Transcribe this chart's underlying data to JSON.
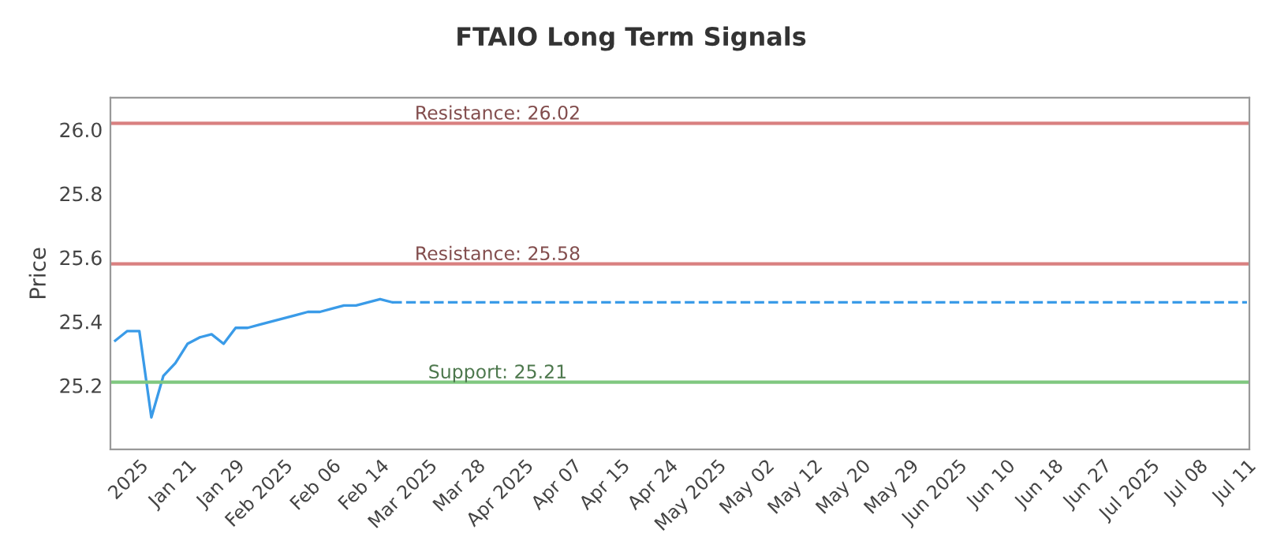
{
  "chart_data": {
    "type": "line",
    "title": "FTAIO Long Term Signals",
    "ylabel": "Price",
    "categories": [
      null,
      null,
      "2025",
      null,
      null,
      null,
      "Jan 21",
      null,
      null,
      null,
      "Jan 29",
      null,
      null,
      null,
      "Feb 2025",
      null,
      null,
      null,
      "Feb 06",
      null,
      null,
      null,
      "Feb 14",
      null,
      null,
      null,
      "Mar 2025",
      null,
      null,
      null,
      "Mar 28",
      null,
      null,
      null,
      "Apr 2025",
      null,
      null,
      null,
      "Apr 07",
      null,
      null,
      null,
      "Apr 15",
      null,
      null,
      null,
      "Apr 24",
      null,
      null,
      null,
      "May 2025",
      null,
      null,
      null,
      "May 02",
      null,
      null,
      null,
      "May 12",
      null,
      null,
      null,
      "May 20",
      null,
      null,
      null,
      "May 29",
      null,
      null,
      null,
      "Jun 2025",
      null,
      null,
      null,
      "Jun 10",
      null,
      null,
      null,
      "Jun 18",
      null,
      null,
      null,
      "Jun 27",
      null,
      null,
      null,
      "Jul 2025",
      null,
      null,
      null,
      "Jul 08",
      null,
      null,
      null,
      "Jul 11"
    ],
    "series": [
      {
        "color": "#3a9be8",
        "line_style": "solid",
        "values": [
          25.34,
          25.37,
          25.37,
          25.1,
          25.23,
          25.27,
          25.33,
          25.35,
          25.36,
          25.33,
          25.38,
          25.38,
          25.39,
          25.4,
          25.41,
          25.42,
          25.43,
          25.43,
          25.44,
          25.45,
          25.45,
          25.46,
          25.47,
          25.46,
          null,
          null,
          null,
          null,
          null,
          null,
          null,
          null,
          null,
          null,
          null,
          null,
          null,
          null,
          null,
          null,
          null,
          null,
          null,
          null,
          null,
          null,
          null,
          null,
          null,
          null,
          null,
          null,
          null,
          null,
          null,
          null,
          null,
          null,
          null,
          null,
          null,
          null,
          null,
          null,
          null,
          null,
          null,
          null,
          null,
          null,
          null,
          null,
          null,
          null,
          null,
          null,
          null,
          null,
          null,
          null,
          null,
          null,
          null,
          null,
          null,
          null,
          null,
          null,
          null,
          null,
          null,
          null,
          null,
          null,
          null
        ]
      },
      {
        "color": "#3a9be8",
        "line_style": "dashed",
        "values": [
          null,
          null,
          null,
          null,
          null,
          null,
          null,
          null,
          null,
          null,
          null,
          null,
          null,
          null,
          null,
          null,
          null,
          null,
          null,
          null,
          null,
          null,
          null,
          25.46,
          25.46,
          25.46,
          25.46,
          25.46,
          25.46,
          25.46,
          25.46,
          25.46,
          25.46,
          25.46,
          25.46,
          25.46,
          25.46,
          25.46,
          25.46,
          25.46,
          25.46,
          25.46,
          25.46,
          25.46,
          25.46,
          25.46,
          25.46,
          25.46,
          25.46,
          25.46,
          25.46,
          25.46,
          25.46,
          25.46,
          25.46,
          25.46,
          25.46,
          25.46,
          25.46,
          25.46,
          25.46,
          25.46,
          25.46,
          25.46,
          25.46,
          25.46,
          25.46,
          25.46,
          25.46,
          25.46,
          25.46,
          25.46,
          25.46,
          25.46,
          25.46,
          25.46,
          25.46,
          25.46,
          25.46,
          25.46,
          25.46,
          25.46,
          25.46,
          25.46,
          25.46,
          25.46,
          25.46,
          25.46,
          25.46,
          25.46,
          25.46,
          25.46,
          25.46,
          25.46,
          25.46
        ]
      }
    ],
    "ylim": [
      25.0,
      26.1
    ],
    "yticks": [
      {
        "value": 25.2,
        "label": "25.2"
      },
      {
        "value": 25.4,
        "label": "25.4"
      },
      {
        "value": 25.6,
        "label": "25.6"
      },
      {
        "value": 25.8,
        "label": "25.8"
      },
      {
        "value": 26.0,
        "label": "26.0"
      }
    ],
    "ref_lines": [
      {
        "axis": "y",
        "value": 26.02,
        "label": "Resistance: 26.02",
        "color": "#d98080"
      },
      {
        "axis": "y",
        "value": 25.58,
        "label": "Resistance: 25.58",
        "color": "#d98080"
      },
      {
        "axis": "y",
        "value": 25.21,
        "label": "Support: 25.21",
        "color": "#80c880"
      }
    ],
    "grid": false,
    "marker": "none"
  }
}
